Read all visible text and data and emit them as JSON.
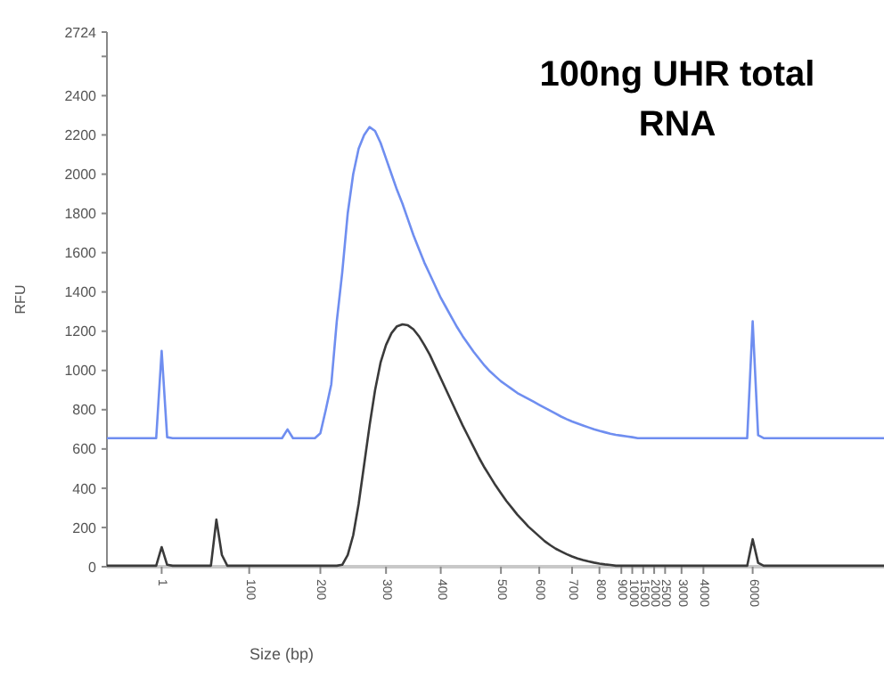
{
  "chart_data": {
    "type": "line",
    "title": "100ng UHR total RNA",
    "xlabel": "Size (bp)",
    "ylabel": "RFU",
    "categories": [
      null,
      null,
      null,
      null,
      null,
      null,
      null,
      null,
      null,
      null,
      "1",
      null,
      null,
      null,
      null,
      null,
      null,
      null,
      null,
      null,
      null,
      null,
      null,
      null,
      null,
      null,
      "100",
      null,
      null,
      null,
      null,
      null,
      null,
      null,
      null,
      null,
      null,
      null,
      null,
      "200",
      null,
      null,
      null,
      null,
      null,
      null,
      null,
      null,
      null,
      null,
      null,
      "300",
      null,
      null,
      null,
      null,
      null,
      null,
      null,
      null,
      null,
      "400",
      null,
      null,
      null,
      null,
      null,
      null,
      null,
      null,
      null,
      null,
      "500",
      null,
      null,
      null,
      null,
      null,
      null,
      "600",
      null,
      null,
      null,
      null,
      null,
      "700",
      null,
      null,
      null,
      null,
      "800",
      null,
      null,
      null,
      "900",
      null,
      "1000",
      null,
      "1500",
      null,
      "2000",
      null,
      "2500",
      null,
      null,
      "3000",
      null,
      null,
      null,
      "4000",
      null,
      null,
      null,
      null,
      null,
      null,
      null,
      null,
      "6000",
      null,
      null,
      null,
      null,
      null,
      null,
      null,
      null,
      null,
      null,
      null,
      null,
      null,
      null,
      null,
      null,
      null,
      null,
      null,
      null,
      null,
      null,
      null,
      null
    ],
    "ylim": [
      0,
      2724
    ],
    "yticks": [
      0,
      200,
      400,
      600,
      800,
      1000,
      1200,
      1400,
      1600,
      1800,
      2000,
      2200,
      2400,
      {
        "value": 2600,
        "label": null
      },
      2724
    ],
    "grid": false,
    "marker": "none",
    "line_style": "solid",
    "series": [
      {
        "color": "#6f8ef0",
        "values": [
          655,
          655,
          655,
          655,
          655,
          655,
          655,
          655,
          655,
          655,
          1100,
          660,
          655,
          655,
          655,
          655,
          655,
          655,
          655,
          655,
          655,
          655,
          655,
          655,
          655,
          655,
          655,
          655,
          655,
          655,
          655,
          655,
          655,
          700,
          655,
          655,
          655,
          655,
          655,
          680,
          800,
          930,
          1250,
          1500,
          1800,
          2000,
          2130,
          2200,
          2240,
          2220,
          2160,
          2080,
          2000,
          1920,
          1850,
          1770,
          1690,
          1620,
          1550,
          1490,
          1430,
          1370,
          1320,
          1270,
          1220,
          1175,
          1135,
          1095,
          1060,
          1025,
          995,
          970,
          945,
          925,
          905,
          885,
          870,
          855,
          840,
          825,
          810,
          795,
          780,
          765,
          752,
          740,
          730,
          720,
          710,
          700,
          692,
          685,
          678,
          672,
          668,
          664,
          660,
          655,
          655,
          655,
          655,
          655,
          655,
          655,
          655,
          655,
          655,
          655,
          655,
          655,
          655,
          655,
          655,
          655,
          655,
          655,
          655,
          655,
          1250,
          670,
          655,
          655,
          655,
          655,
          655,
          655,
          655,
          655,
          655,
          655,
          655,
          655,
          655,
          655,
          655,
          655,
          655,
          655,
          655,
          655,
          655,
          655,
          655
        ]
      },
      {
        "color": "#3a3a3a",
        "values": [
          5,
          5,
          5,
          5,
          5,
          5,
          5,
          5,
          5,
          5,
          100,
          10,
          5,
          5,
          5,
          5,
          5,
          5,
          5,
          5,
          240,
          60,
          5,
          5,
          5,
          5,
          5,
          5,
          5,
          5,
          5,
          5,
          5,
          5,
          5,
          5,
          5,
          5,
          5,
          5,
          5,
          5,
          5,
          10,
          60,
          160,
          320,
          520,
          720,
          900,
          1040,
          1130,
          1190,
          1225,
          1235,
          1230,
          1210,
          1175,
          1130,
          1080,
          1020,
          960,
          900,
          840,
          780,
          720,
          665,
          610,
          555,
          505,
          460,
          415,
          375,
          335,
          300,
          265,
          235,
          205,
          180,
          155,
          130,
          110,
          92,
          78,
          64,
          52,
          42,
          34,
          27,
          21,
          16,
          12,
          9,
          5,
          5,
          5,
          5,
          5,
          5,
          5,
          5,
          5,
          5,
          5,
          5,
          5,
          5,
          5,
          5,
          5,
          5,
          5,
          5,
          5,
          5,
          5,
          5,
          5,
          140,
          20,
          5,
          5,
          5,
          5,
          5,
          5,
          5,
          5,
          5,
          5,
          5,
          5,
          5,
          5,
          5,
          5,
          5,
          5,
          5,
          5,
          5,
          5,
          5
        ]
      }
    ]
  }
}
